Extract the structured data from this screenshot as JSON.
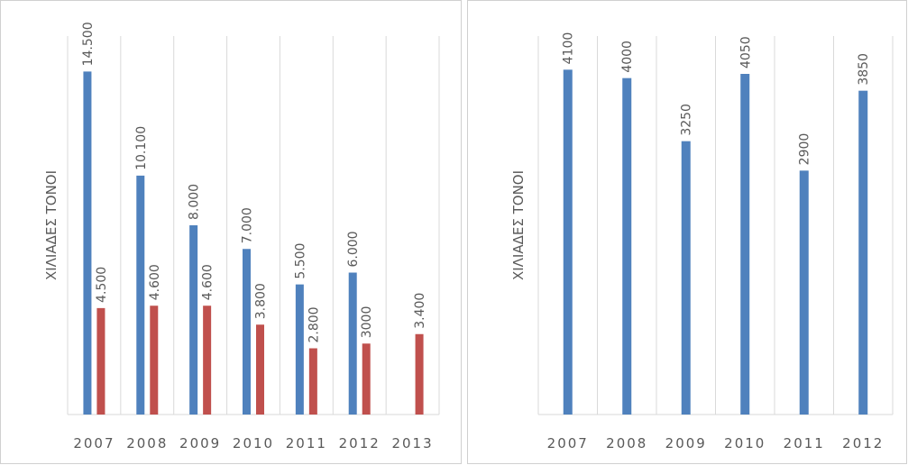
{
  "chart_data": [
    {
      "type": "bar",
      "y_label": "ΧΙΛΙΑΔΕΣ ΤΟΝΟΙ",
      "categories": [
        "2007",
        "2008",
        "2009",
        "2010",
        "2011",
        "2012",
        "2013"
      ],
      "series": [
        {
          "color": "#4f81bd",
          "values": [
            14500,
            10100,
            8000,
            7000,
            5500,
            6000,
            null
          ],
          "value_labels": [
            "14.500",
            "10.100",
            "8.000",
            "7.000",
            "5.500",
            "6.000",
            null
          ]
        },
        {
          "color": "#c0504d",
          "values": [
            4500,
            4600,
            4600,
            3800,
            2800,
            3000,
            3400
          ],
          "value_labels": [
            "4.500",
            "4.600",
            "4.600",
            "3.800",
            "2.800",
            "3000",
            "3.400"
          ]
        }
      ],
      "ylim": [
        0,
        16000
      ],
      "grid": true
    },
    {
      "type": "bar",
      "y_label": "ΧΙΛΙΑΔΕΣ ΤΟΝΟΙ",
      "categories": [
        "2007",
        "2008",
        "2009",
        "2010",
        "2011",
        "2012"
      ],
      "series": [
        {
          "color": "#4f81bd",
          "values": [
            4100,
            4000,
            3250,
            4050,
            2900,
            3850
          ]
        }
      ],
      "ylim": [
        0,
        4500
      ],
      "grid": true
    }
  ]
}
